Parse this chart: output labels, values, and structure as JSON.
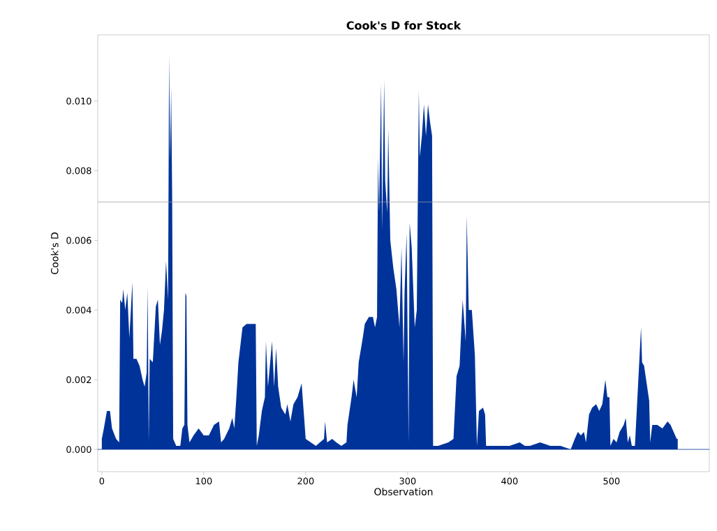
{
  "chart_data": {
    "type": "area",
    "title": "Cook's D for Stock",
    "xlabel": "Observation",
    "ylabel": "Cook's D",
    "color": "#003399",
    "xlim": [
      -4,
      596
    ],
    "xticks": [
      0,
      100,
      200,
      300,
      400,
      500
    ],
    "ylim": [
      -0.00064,
      0.0119
    ],
    "yticks": [
      {
        "value": 0,
        "label": "0.000"
      },
      {
        "value": 0.002,
        "label": "0.002"
      },
      {
        "value": 0.004,
        "label": "0.004"
      },
      {
        "value": 0.006,
        "label": "0.006"
      },
      {
        "value": 0.008,
        "label": "0.008"
      },
      {
        "value": 0.01,
        "label": "0.010"
      }
    ],
    "ref_lines": [
      {
        "axis": "y",
        "value": 0.0071,
        "color": "#999999"
      },
      {
        "axis": "y",
        "value": 0,
        "color": "#003399"
      }
    ],
    "grid": false,
    "x": [
      0,
      2,
      5,
      8,
      10,
      14,
      17,
      18,
      20,
      21,
      23,
      25,
      27,
      30,
      31,
      34,
      37,
      40,
      42,
      44,
      45,
      46,
      47,
      50,
      53,
      55,
      57,
      59,
      61,
      63,
      65,
      66,
      67,
      68,
      69,
      70,
      73,
      77,
      79,
      81,
      82,
      83,
      84,
      86,
      90,
      95,
      100,
      105,
      110,
      115,
      117,
      120,
      125,
      128,
      130,
      132,
      134,
      136,
      138,
      142,
      147,
      151,
      152,
      154,
      157,
      160,
      161,
      163,
      167,
      169,
      171,
      173,
      176,
      180,
      182,
      185,
      188,
      192,
      196,
      198,
      200,
      205,
      210,
      218,
      219,
      221,
      226,
      230,
      235,
      240,
      241,
      245,
      247,
      250,
      252,
      256,
      258,
      262,
      266,
      268,
      270,
      271,
      272,
      274,
      275,
      277,
      278,
      280,
      281,
      283,
      286,
      289,
      292,
      294,
      296,
      297,
      299,
      301,
      302,
      304,
      307,
      309,
      311,
      312,
      314,
      316,
      318,
      320,
      322,
      324,
      325,
      330,
      340,
      345,
      348,
      351,
      354,
      357,
      358,
      360,
      363,
      366,
      368,
      370,
      374,
      376,
      377,
      385,
      400,
      410,
      415,
      420,
      430,
      440,
      450,
      460,
      464,
      467,
      470,
      473,
      475,
      478,
      481,
      485,
      488,
      491,
      494,
      496,
      498,
      499,
      502,
      505,
      508,
      512,
      514,
      516,
      518,
      520,
      523,
      529,
      530,
      532,
      535,
      537,
      538,
      540,
      545,
      550,
      555,
      558,
      561,
      564,
      565
    ],
    "values": [
      0.0003,
      0.0006,
      0.0011,
      0.0011,
      0.0006,
      0.0003,
      0.0002,
      0.0043,
      0.0042,
      0.0046,
      0.004,
      0.0045,
      0.0032,
      0.0048,
      0.0026,
      0.0026,
      0.0024,
      0.002,
      0.0018,
      0.0022,
      0.0047,
      0.0002,
      0.0026,
      0.0025,
      0.0041,
      0.0043,
      0.003,
      0.0034,
      0.004,
      0.0054,
      0.0043,
      0.0113,
      0.0083,
      0.0104,
      0.0073,
      0.0003,
      0.0001,
      0.0001,
      0.0006,
      0.0007,
      0.0045,
      0.0044,
      0.0007,
      0.0002,
      0.0004,
      0.0006,
      0.0004,
      0.0004,
      0.0007,
      0.0008,
      0.0002,
      0.0003,
      0.0006,
      0.0009,
      0.0006,
      0.0015,
      0.0025,
      0.003,
      0.0035,
      0.0036,
      0.0036,
      0.0036,
      0.0001,
      0.0004,
      0.0011,
      0.0015,
      0.0031,
      0.0018,
      0.0031,
      0.0018,
      0.0029,
      0.0018,
      0.0012,
      0.001,
      0.0013,
      0.0008,
      0.0013,
      0.0015,
      0.0019,
      0.0011,
      0.0003,
      0.0002,
      0.0001,
      0.0003,
      0.0008,
      0.0002,
      0.0003,
      0.0002,
      0.0001,
      0.0002,
      0.0007,
      0.0015,
      0.002,
      0.0015,
      0.0025,
      0.0032,
      0.0036,
      0.0038,
      0.0038,
      0.0035,
      0.0038,
      0.0084,
      0.0068,
      0.0105,
      0.0063,
      0.0106,
      0.0077,
      0.0068,
      0.0092,
      0.006,
      0.0052,
      0.0046,
      0.0035,
      0.0058,
      0.0025,
      0.0045,
      0.0062,
      0.0002,
      0.0065,
      0.0058,
      0.0035,
      0.004,
      0.0103,
      0.0084,
      0.009,
      0.0099,
      0.009,
      0.0099,
      0.0094,
      0.009,
      0.0001,
      0.0001,
      0.0002,
      0.0003,
      0.0021,
      0.0024,
      0.0043,
      0.0031,
      0.0067,
      0.004,
      0.004,
      0.0027,
      0.0001,
      0.0011,
      0.0012,
      0.001,
      0.0001,
      0.0001,
      0.0001,
      0.0002,
      0.0001,
      0.0001,
      0.0002,
      0.0001,
      0.0001,
      0.0,
      0.0003,
      0.0005,
      0.0004,
      0.0005,
      0.0002,
      0.001,
      0.0012,
      0.0013,
      0.0011,
      0.0013,
      0.002,
      0.0015,
      0.0015,
      0.0001,
      0.0003,
      0.0002,
      0.0005,
      0.0007,
      0.0009,
      0.0002,
      0.0004,
      0.0001,
      0.0001,
      0.0035,
      0.0025,
      0.0024,
      0.0018,
      0.0014,
      0.0002,
      0.0007,
      0.0007,
      0.0006,
      0.0008,
      0.0007,
      0.0005,
      0.0003,
      0.0003
    ]
  }
}
